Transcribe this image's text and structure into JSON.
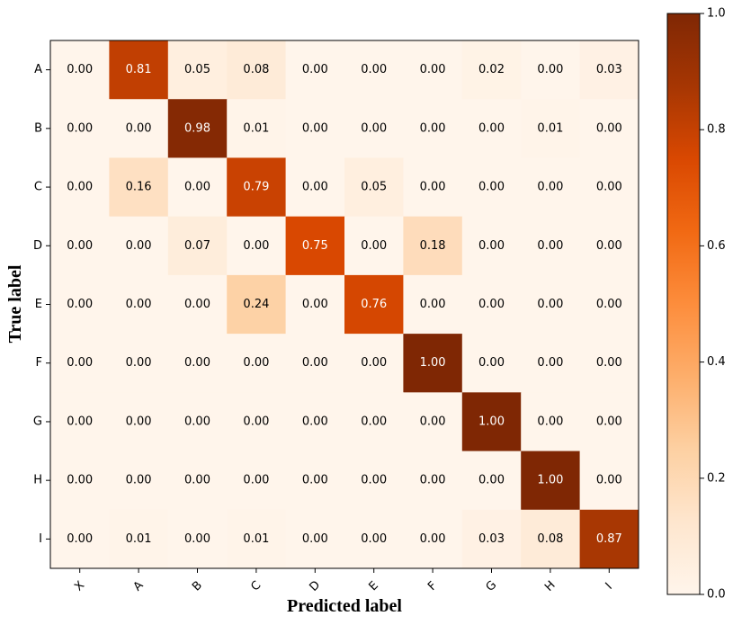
{
  "chart_data": {
    "type": "heatmap",
    "x_categories": [
      "X",
      "A",
      "B",
      "C",
      "D",
      "E",
      "F",
      "G",
      "H",
      "I"
    ],
    "y_categories": [
      "A",
      "B",
      "C",
      "D",
      "E",
      "F",
      "G",
      "H",
      "I"
    ],
    "values": [
      [
        0.0,
        0.81,
        0.05,
        0.08,
        0.0,
        0.0,
        0.0,
        0.02,
        0.0,
        0.03
      ],
      [
        0.0,
        0.0,
        0.98,
        0.01,
        0.0,
        0.0,
        0.0,
        0.0,
        0.01,
        0.0
      ],
      [
        0.0,
        0.16,
        0.0,
        0.79,
        0.0,
        0.05,
        0.0,
        0.0,
        0.0,
        0.0
      ],
      [
        0.0,
        0.0,
        0.07,
        0.0,
        0.75,
        0.0,
        0.18,
        0.0,
        0.0,
        0.0
      ],
      [
        0.0,
        0.0,
        0.0,
        0.24,
        0.0,
        0.76,
        0.0,
        0.0,
        0.0,
        0.0
      ],
      [
        0.0,
        0.0,
        0.0,
        0.0,
        0.0,
        0.0,
        1.0,
        0.0,
        0.0,
        0.0
      ],
      [
        0.0,
        0.0,
        0.0,
        0.0,
        0.0,
        0.0,
        0.0,
        1.0,
        0.0,
        0.0
      ],
      [
        0.0,
        0.0,
        0.0,
        0.0,
        0.0,
        0.0,
        0.0,
        0.0,
        1.0,
        0.0
      ],
      [
        0.0,
        0.01,
        0.0,
        0.01,
        0.0,
        0.0,
        0.0,
        0.03,
        0.08,
        0.87
      ]
    ],
    "xlabel": "Predicted label",
    "ylabel": "True label",
    "colorbar": {
      "range": [
        0.0,
        1.0
      ],
      "ticks": [
        "0.0",
        "0.2",
        "0.4",
        "0.6",
        "0.8",
        "1.0"
      ],
      "colormap": "Oranges",
      "colors": [
        "#fff5eb",
        "#fee6ce",
        "#fdd0a2",
        "#fdae6b",
        "#fd8d3c",
        "#f16913",
        "#d94801",
        "#a63603",
        "#7f2704"
      ]
    },
    "grid": false
  }
}
